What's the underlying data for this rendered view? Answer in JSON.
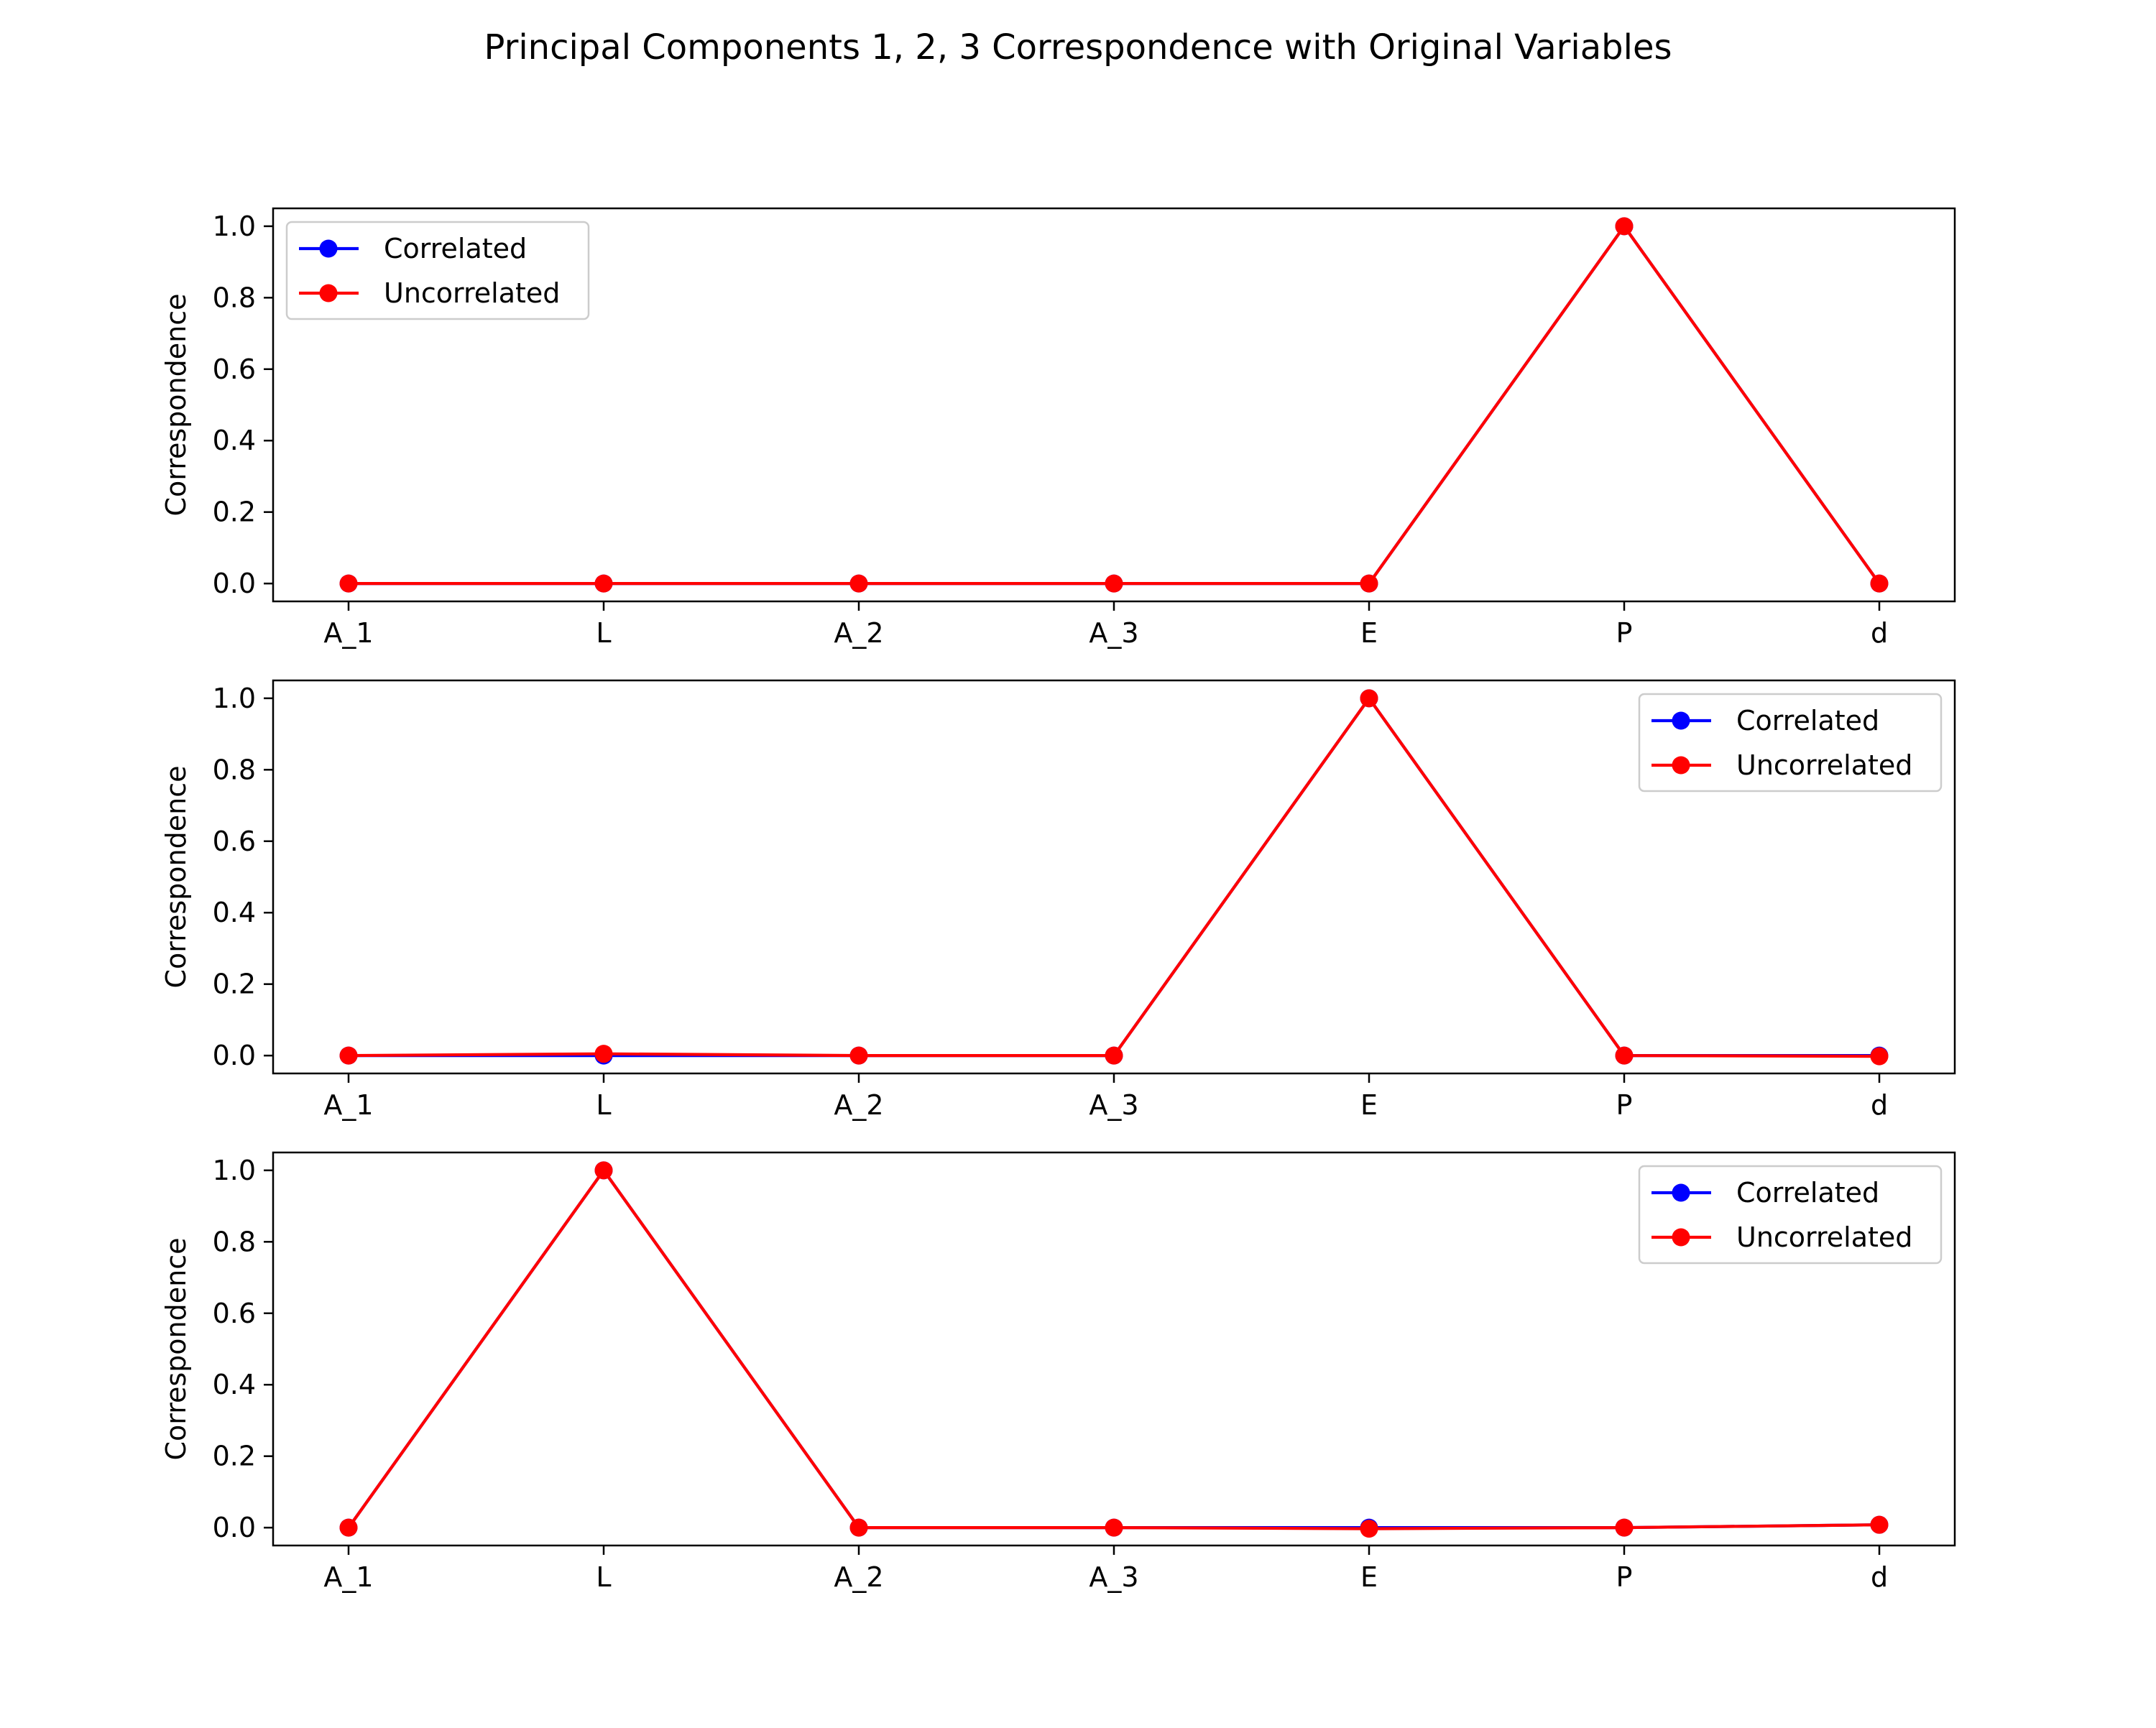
{
  "figure": {
    "title": "Principal Components 1, 2, 3 Correspondence with Original Variables"
  },
  "colors": {
    "correlated": "#0000ff",
    "uncorrelated": "#ff0000",
    "axes": "#000000",
    "background": "#ffffff",
    "legend_border": "#cccccc"
  },
  "chart_data": [
    {
      "type": "line",
      "title": "",
      "xlabel": "",
      "ylabel": "Correspondence",
      "categories": [
        "A_1",
        "L",
        "A_2",
        "A_3",
        "E",
        "P",
        "d"
      ],
      "ylim": [
        -0.05,
        1.05
      ],
      "yticks": [
        "0.0",
        "0.2",
        "0.4",
        "0.6",
        "0.8",
        "1.0"
      ],
      "legend_position": "upper left",
      "grid": false,
      "series": [
        {
          "name": "Correlated",
          "color": "#0000ff",
          "marker": "circle",
          "values": [
            0.0,
            0.0,
            0.0,
            0.0,
            0.0,
            1.0,
            0.0
          ]
        },
        {
          "name": "Uncorrelated",
          "color": "#ff0000",
          "marker": "circle",
          "values": [
            0.0,
            0.0,
            0.0,
            0.0,
            0.0,
            1.0,
            0.0
          ]
        }
      ]
    },
    {
      "type": "line",
      "title": "",
      "xlabel": "",
      "ylabel": "Correspondence",
      "categories": [
        "A_1",
        "L",
        "A_2",
        "A_3",
        "E",
        "P",
        "d"
      ],
      "ylim": [
        -0.05,
        1.05
      ],
      "yticks": [
        "0.0",
        "0.2",
        "0.4",
        "0.6",
        "0.8",
        "1.0"
      ],
      "legend_position": "upper right",
      "grid": false,
      "series": [
        {
          "name": "Correlated",
          "color": "#0000ff",
          "marker": "circle",
          "values": [
            0.0,
            0.0,
            0.0,
            0.0,
            1.0,
            0.0,
            0.0
          ]
        },
        {
          "name": "Uncorrelated",
          "color": "#ff0000",
          "marker": "circle",
          "values": [
            0.0,
            0.005,
            0.0,
            0.0,
            1.0,
            0.0,
            -0.002
          ]
        }
      ]
    },
    {
      "type": "line",
      "title": "",
      "xlabel": "",
      "ylabel": "Correspondence",
      "categories": [
        "A_1",
        "L",
        "A_2",
        "A_3",
        "E",
        "P",
        "d"
      ],
      "ylim": [
        -0.05,
        1.05
      ],
      "yticks": [
        "0.0",
        "0.2",
        "0.4",
        "0.6",
        "0.8",
        "1.0"
      ],
      "legend_position": "upper right",
      "grid": false,
      "series": [
        {
          "name": "Correlated",
          "color": "#0000ff",
          "marker": "circle",
          "values": [
            0.0,
            1.0,
            0.0,
            0.0,
            0.0,
            0.0,
            0.008
          ]
        },
        {
          "name": "Uncorrelated",
          "color": "#ff0000",
          "marker": "circle",
          "values": [
            0.0,
            1.0,
            0.0,
            0.0,
            -0.003,
            0.0,
            0.008
          ]
        }
      ]
    }
  ]
}
